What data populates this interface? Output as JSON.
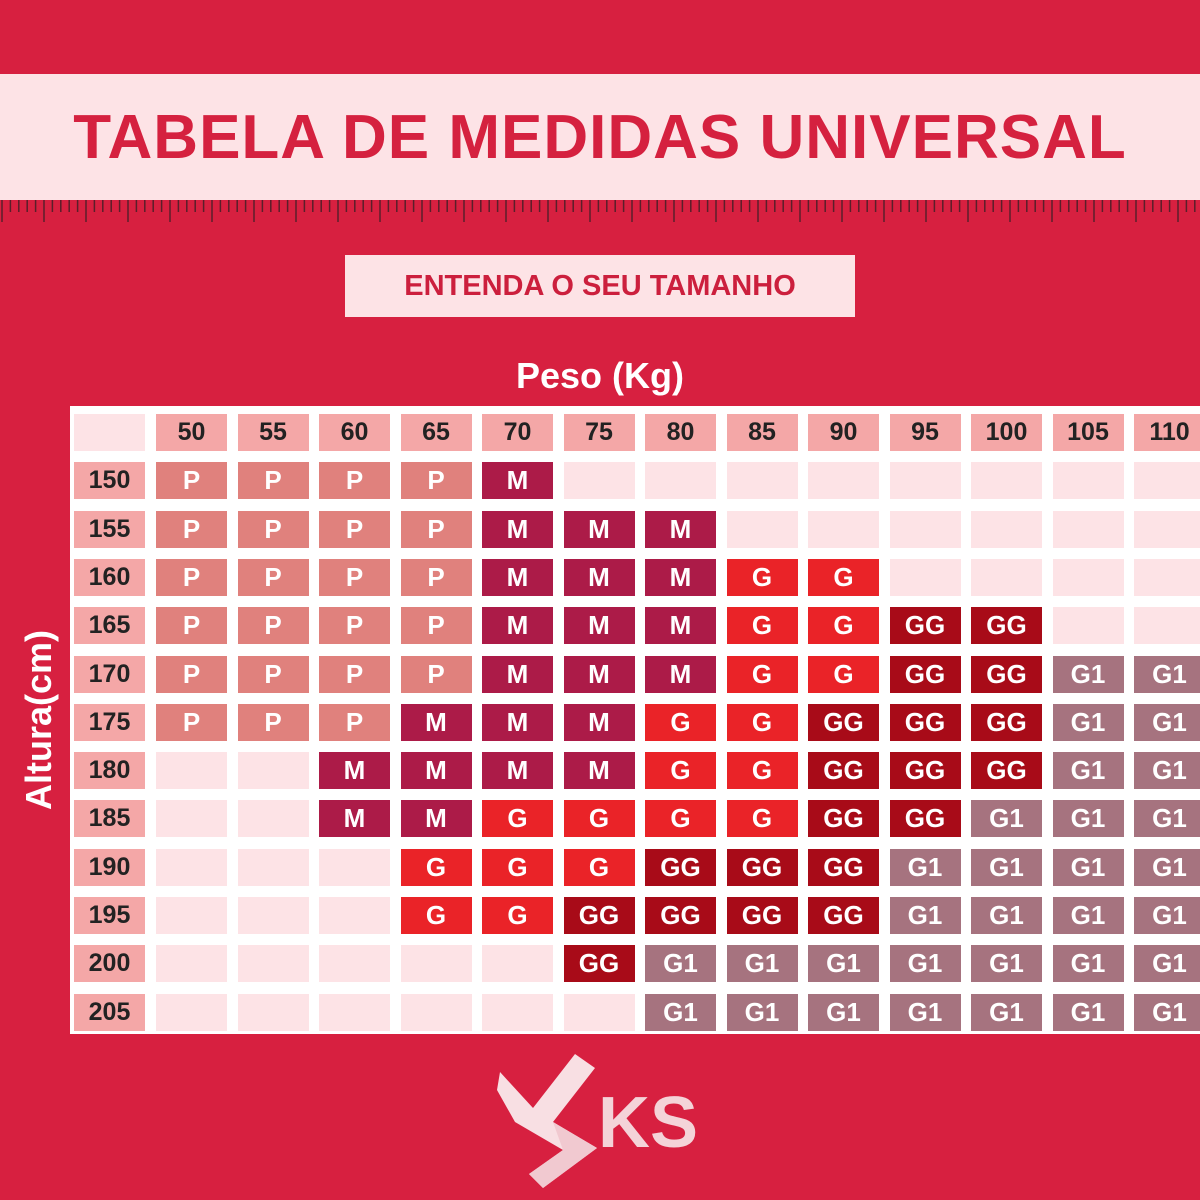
{
  "header": {
    "title": "TABELA DE MEDIDAS UNIVERSAL",
    "subtitle": "ENTENDA O SEU TAMANHO"
  },
  "axes": {
    "weight_label": "Peso (Kg)",
    "height_label": "Altura(cm)"
  },
  "table": {
    "weights": [
      "50",
      "55",
      "60",
      "65",
      "70",
      "75",
      "80",
      "85",
      "90",
      "95",
      "100",
      "105",
      "110"
    ],
    "heights": [
      "150",
      "155",
      "160",
      "165",
      "170",
      "175",
      "180",
      "185",
      "190",
      "195",
      "200",
      "205"
    ],
    "rows": [
      [
        "P",
        "P",
        "P",
        "P",
        "M",
        "",
        "",
        "",
        "",
        "",
        "",
        "",
        ""
      ],
      [
        "P",
        "P",
        "P",
        "P",
        "M",
        "M",
        "M",
        "",
        "",
        "",
        "",
        "",
        ""
      ],
      [
        "P",
        "P",
        "P",
        "P",
        "M",
        "M",
        "M",
        "G",
        "G",
        "",
        "",
        "",
        ""
      ],
      [
        "P",
        "P",
        "P",
        "P",
        "M",
        "M",
        "M",
        "G",
        "G",
        "GG",
        "GG",
        "",
        ""
      ],
      [
        "P",
        "P",
        "P",
        "P",
        "M",
        "M",
        "M",
        "G",
        "G",
        "GG",
        "GG",
        "G1",
        "G1"
      ],
      [
        "P",
        "P",
        "P",
        "M",
        "M",
        "M",
        "G",
        "G",
        "GG",
        "GG",
        "GG",
        "G1",
        "G1"
      ],
      [
        "",
        "",
        "M",
        "M",
        "M",
        "M",
        "G",
        "G",
        "GG",
        "GG",
        "GG",
        "G1",
        "G1"
      ],
      [
        "",
        "",
        "M",
        "M",
        "G",
        "G",
        "G",
        "G",
        "GG",
        "GG",
        "G1",
        "G1",
        "G1"
      ],
      [
        "",
        "",
        "",
        "G",
        "G",
        "G",
        "GG",
        "GG",
        "GG",
        "G1",
        "G1",
        "G1",
        "G1"
      ],
      [
        "",
        "",
        "",
        "G",
        "G",
        "GG",
        "GG",
        "GG",
        "GG",
        "G1",
        "G1",
        "G1",
        "G1"
      ],
      [
        "",
        "",
        "",
        "",
        "",
        "GG",
        "G1",
        "G1",
        "G1",
        "G1",
        "G1",
        "G1",
        "G1"
      ],
      [
        "",
        "",
        "",
        "",
        "",
        "",
        "G1",
        "G1",
        "G1",
        "G1",
        "G1",
        "G1",
        "G1"
      ]
    ]
  },
  "size_colors": {
    "P": "#e0817d",
    "M": "#ac1b48",
    "G": "#ea2328",
    "GG": "#a80b18",
    "G1": "#a6737f",
    "empty": "#fde3e6",
    "header": "#f4a7a7"
  },
  "logo": {
    "text": "KS"
  }
}
